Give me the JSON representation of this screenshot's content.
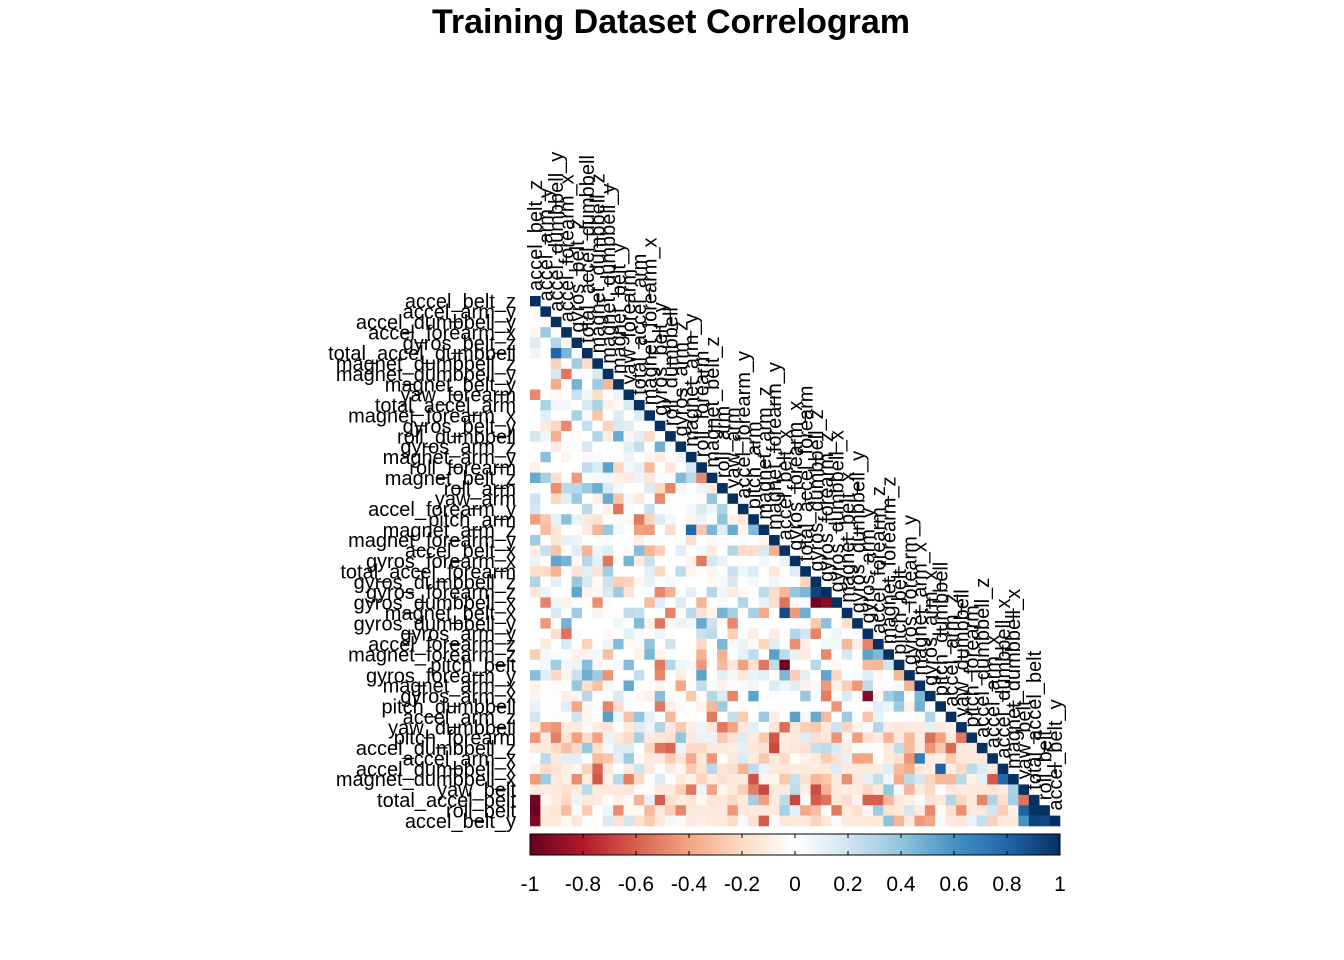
{
  "chart_data": {
    "type": "heatmap",
    "layout": "lower-triangle",
    "title": "Training Dataset Correlogram",
    "variables": [
      "accel_belt_z",
      "accel_arm_y",
      "accel_dumbbell_y",
      "accel_forearm_x",
      "gyros_belt_z",
      "total_accel_dumbbell",
      "magnet_dumbbell_z",
      "magnet_dumbbell_y",
      "magnet_belt_y",
      "yaw_forearm",
      "total_accel_arm",
      "magnet_forearm_x",
      "gyros_belt_y",
      "roll_dumbbell",
      "gyros_arm_z",
      "magnet_arm_y",
      "roll_forearm",
      "magnet_belt_z",
      "roll_arm",
      "yaw_arm",
      "accel_forearm_y",
      "pitch_arm",
      "magnet_arm_z",
      "magnet_forearm_y",
      "accel_belt_x",
      "gyros_forearm_x",
      "total_accel_forearm",
      "gyros_dumbbell_z",
      "gyros_forearm_z",
      "gyros_dumbbell_x",
      "magnet_belt_x",
      "gyros_dumbbell_y",
      "gyros_arm_y",
      "accel_forearm_z",
      "magnet_forearm_z",
      "pitch_belt",
      "gyros_forearm_y",
      "magnet_arm_x",
      "gyros_arm_x",
      "pitch_dumbbell",
      "accel_arm_z",
      "yaw_dumbbell",
      "pitch_forearm",
      "accel_dumbbell_z",
      "accel_arm_x",
      "accel_dumbbell_x",
      "magnet_dumbbell_x",
      "yaw_belt",
      "total_accel_belt",
      "roll_belt",
      "accel_belt_y"
    ],
    "value_range": [
      -1,
      1
    ],
    "colorbar_ticks": [
      "-1",
      "-0.8",
      "-0.6",
      "-0.4",
      "-0.2",
      "0",
      "0.2",
      "0.4",
      "0.6",
      "0.8",
      "1"
    ],
    "colorscale": [
      "#67001f",
      "#b2182b",
      "#d6604d",
      "#f4a582",
      "#fddbc7",
      "#ffffff",
      "#d1e5f0",
      "#92c5de",
      "#4393c3",
      "#2166ac",
      "#053061"
    ],
    "notable_correlations": [
      {
        "a": "total_accel_belt",
        "b": "roll_belt",
        "r": 0.98
      },
      {
        "a": "total_accel_belt",
        "b": "accel_belt_y",
        "r": 0.93
      },
      {
        "a": "roll_belt",
        "b": "accel_belt_y",
        "r": 0.92
      },
      {
        "a": "yaw_belt",
        "b": "roll_belt",
        "r": 0.82
      },
      {
        "a": "yaw_belt",
        "b": "accel_belt_y",
        "r": 0.6
      },
      {
        "a": "accel_belt_z",
        "b": "roll_belt",
        "r": -0.99
      },
      {
        "a": "accel_belt_z",
        "b": "accel_belt_y",
        "r": -0.93
      },
      {
        "a": "accel_belt_z",
        "b": "total_accel_belt",
        "r": -0.97
      },
      {
        "a": "accel_belt_x",
        "b": "pitch_belt",
        "r": -0.97
      },
      {
        "a": "magnet_belt_x",
        "b": "accel_belt_x",
        "r": 0.9
      },
      {
        "a": "gyros_dumbbell_z",
        "b": "gyros_forearm_z",
        "r": 0.93
      },
      {
        "a": "gyros_dumbbell_x",
        "b": "gyros_dumbbell_z",
        "r": -0.98
      },
      {
        "a": "gyros_dumbbell_x",
        "b": "gyros_forearm_z",
        "r": -0.91
      },
      {
        "a": "gyros_arm_y",
        "b": "gyros_arm_x",
        "r": -0.92
      },
      {
        "a": "gyros_forearm_y",
        "b": "gyros_forearm_z",
        "r": 0.53
      },
      {
        "a": "total_accel_dumbbell",
        "b": "accel_dumbbell_y",
        "r": 0.8
      },
      {
        "a": "magnet_dumbbell_x",
        "b": "accel_dumbbell_x",
        "r": 0.78
      },
      {
        "a": "magnet_arm_x",
        "b": "accel_arm_x",
        "r": 0.69
      },
      {
        "a": "magnet_arm_z",
        "b": "magnet_arm_y",
        "r": 0.79
      },
      {
        "a": "pitch_dumbbell",
        "b": "accel_dumbbell_x",
        "r": 0.81
      },
      {
        "a": "accel_forearm_z",
        "b": "magnet_forearm_z",
        "r": 0.45
      },
      {
        "a": "accel_belt_z",
        "b": "total_accel_belt",
        "r": -0.97
      }
    ]
  }
}
